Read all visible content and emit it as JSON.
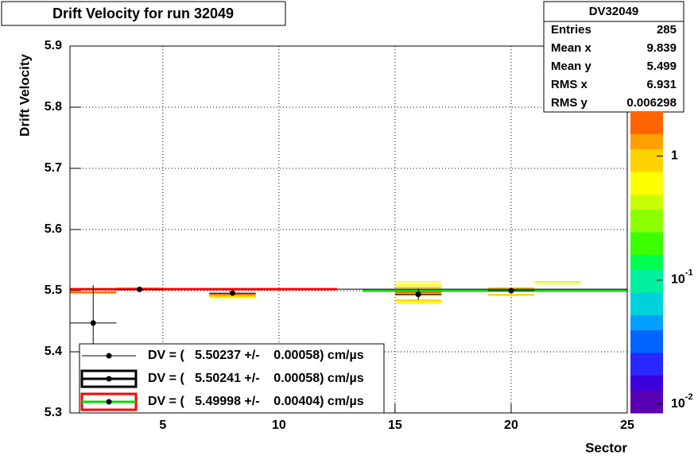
{
  "chart_data": {
    "type": "histogram2d",
    "title": "Drift Velocity for run 32049",
    "x_label": "Sector",
    "y_label": "Drift Velocity",
    "xlim": [
      1,
      25
    ],
    "ylim": [
      5.3,
      5.9
    ],
    "xticks": [
      5,
      10,
      15,
      20,
      25
    ],
    "yticks": [
      5.3,
      5.4,
      5.5,
      5.6,
      5.7,
      5.8,
      5.9
    ],
    "grid": true,
    "zlim": [
      0.0085,
      2.3
    ],
    "zscale": "log",
    "zticks": [
      {
        "value": 1,
        "label": "1"
      },
      {
        "value": 0.1,
        "label": "10^-1"
      },
      {
        "value": 0.01,
        "label": "10^-2"
      }
    ],
    "palette": [
      "#5a00b4",
      "#3c00dc",
      "#2828ff",
      "#0064ff",
      "#00a0ff",
      "#00d2dc",
      "#00f0a0",
      "#00ff50",
      "#3cff00",
      "#8cff00",
      "#c8ff00",
      "#ffff00",
      "#ffd200",
      "#ffa000",
      "#ff6400"
    ],
    "cells": [
      {
        "x0": 1,
        "x1": 3,
        "y0": 5.4955,
        "y1": 5.4985,
        "z": 2.0
      },
      {
        "x0": 1,
        "x1": 3,
        "y0": 5.5005,
        "y1": 5.5035,
        "z": 0.8
      },
      {
        "x0": 3,
        "x1": 5,
        "y0": 5.5025,
        "y1": 5.5055,
        "z": 0.8
      },
      {
        "x0": 7,
        "x1": 9,
        "y0": 5.4925,
        "y1": 5.4955,
        "z": 2.0
      },
      {
        "x0": 7,
        "x1": 9,
        "y0": 5.4895,
        "y1": 5.4925,
        "z": 0.9
      },
      {
        "x0": 7,
        "x1": 9,
        "y0": 5.4875,
        "y1": 5.4895,
        "z": 0.7
      },
      {
        "x0": 15,
        "x1": 17,
        "y0": 5.5135,
        "y1": 5.5155,
        "z": 0.6
      },
      {
        "x0": 15,
        "x1": 17,
        "y0": 5.5075,
        "y1": 5.5105,
        "z": 0.7
      },
      {
        "x0": 15,
        "x1": 17,
        "y0": 5.5035,
        "y1": 5.5065,
        "z": 1.0
      },
      {
        "x0": 15,
        "x1": 17,
        "y0": 5.4995,
        "y1": 5.5025,
        "z": 1.5
      },
      {
        "x0": 15,
        "x1": 17,
        "y0": 5.4955,
        "y1": 5.4985,
        "z": 2.0
      },
      {
        "x0": 15,
        "x1": 17,
        "y0": 5.4915,
        "y1": 5.4945,
        "z": 1.3
      },
      {
        "x0": 15,
        "x1": 17,
        "y0": 5.4825,
        "y1": 5.4855,
        "z": 0.9
      },
      {
        "x0": 15,
        "x1": 17,
        "y0": 5.4785,
        "y1": 5.4815,
        "z": 0.7
      },
      {
        "x0": 17,
        "x1": 19,
        "y0": 5.5005,
        "y1": 5.5025,
        "z": 0.9
      },
      {
        "x0": 19,
        "x1": 21,
        "y0": 5.5025,
        "y1": 5.5055,
        "z": 0.9
      },
      {
        "x0": 19,
        "x1": 21,
        "y0": 5.4985,
        "y1": 5.5015,
        "z": 1.2
      },
      {
        "x0": 19,
        "x1": 21,
        "y0": 5.4915,
        "y1": 5.4945,
        "z": 0.8
      },
      {
        "x0": 21,
        "x1": 23,
        "y0": 5.5105,
        "y1": 5.5125,
        "z": 0.6
      },
      {
        "x0": 21,
        "x1": 23,
        "y0": 5.5135,
        "y1": 5.5155,
        "z": 0.5
      }
    ],
    "points": {
      "color": "#000000",
      "x": [
        2,
        4,
        8,
        16,
        20
      ],
      "y": [
        5.447,
        5.502,
        5.496,
        5.494,
        5.5
      ],
      "xerr": [
        1,
        1,
        1,
        1,
        1
      ],
      "yerr": [
        0.062,
        0.002,
        0.002,
        0.009,
        0.002
      ]
    },
    "fits": [
      {
        "name": "DV = (   5.50237 +/-    0.00058) cm/µs",
        "color": "#000000",
        "frame": null,
        "xrange": [
          1,
          25
        ],
        "value": 5.50237
      },
      {
        "name": "DV = (   5.50241 +/-    0.00058) cm/µs",
        "color": "#ff0000",
        "frame": "#000000",
        "xrange": [
          1,
          12.5
        ],
        "value": 5.50241
      },
      {
        "name": "DV = (   5.49998 +/-    0.00404) cm/µs",
        "color": "#00dd00",
        "frame": "#ff0000",
        "xrange": [
          13.6,
          25
        ],
        "value": 5.49998
      }
    ],
    "stats": {
      "title": "DV32049",
      "rows": [
        {
          "label": "Entries",
          "value": 285
        },
        {
          "label": "Mean x",
          "value": 9.839
        },
        {
          "label": "Mean y",
          "value": 5.499
        },
        {
          "label": "RMS x",
          "value": 6.931
        },
        {
          "label": "RMS y",
          "value": 0.006298
        }
      ]
    }
  }
}
